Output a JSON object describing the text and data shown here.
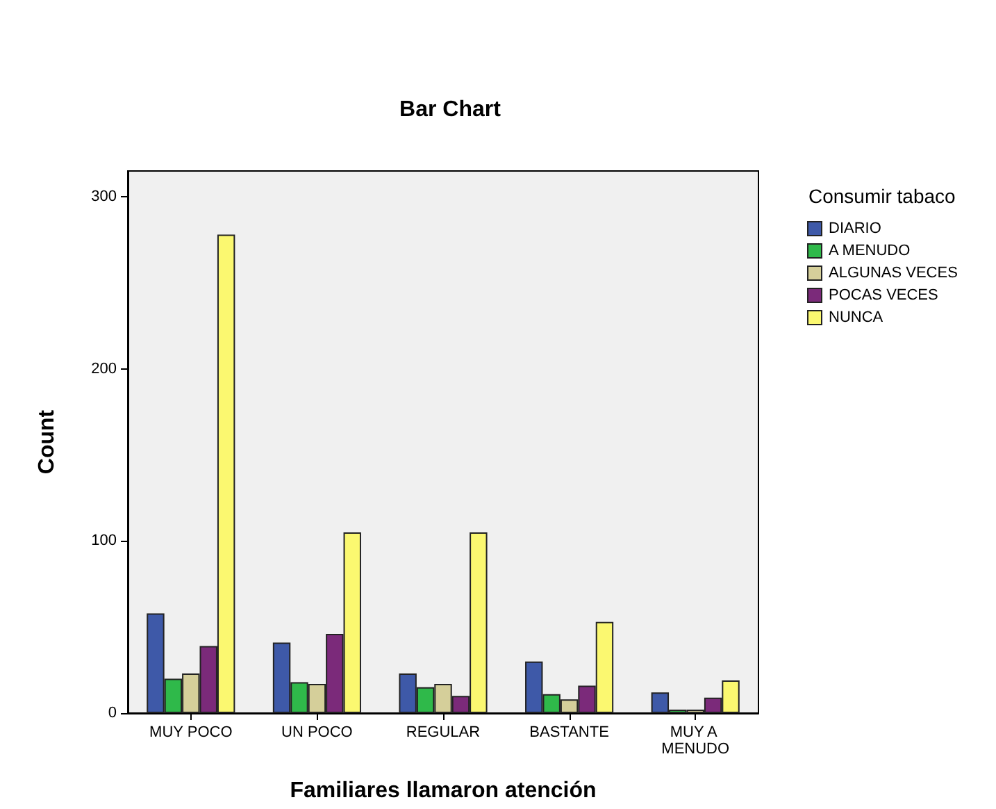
{
  "chart_data": {
    "type": "bar",
    "title": "Bar Chart",
    "xlabel": "Familiares llamaron atención",
    "ylabel": "Count",
    "legend_title": "Consumir tabaco",
    "categories": [
      "MUY POCO",
      "UN POCO",
      "REGULAR",
      "BASTANTE",
      "MUY A MENUDO"
    ],
    "series": [
      {
        "name": "DIARIO",
        "color": "#3e59a8",
        "values": [
          58,
          41,
          23,
          30,
          12
        ]
      },
      {
        "name": "A MENUDO",
        "color": "#2fb94a",
        "values": [
          20,
          18,
          15,
          11,
          2
        ]
      },
      {
        "name": "ALGUNAS VECES",
        "color": "#d5cf9a",
        "values": [
          23,
          17,
          17,
          8,
          2
        ]
      },
      {
        "name": "POCAS VECES",
        "color": "#7b2a7a",
        "values": [
          39,
          46,
          10,
          16,
          9
        ]
      },
      {
        "name": "NUNCA",
        "color": "#fbf870",
        "values": [
          278,
          105,
          105,
          53,
          19
        ]
      }
    ],
    "ylim": [
      0,
      315
    ],
    "yticks": [
      0,
      100,
      200,
      300
    ],
    "grid": false,
    "legend": "top right"
  }
}
